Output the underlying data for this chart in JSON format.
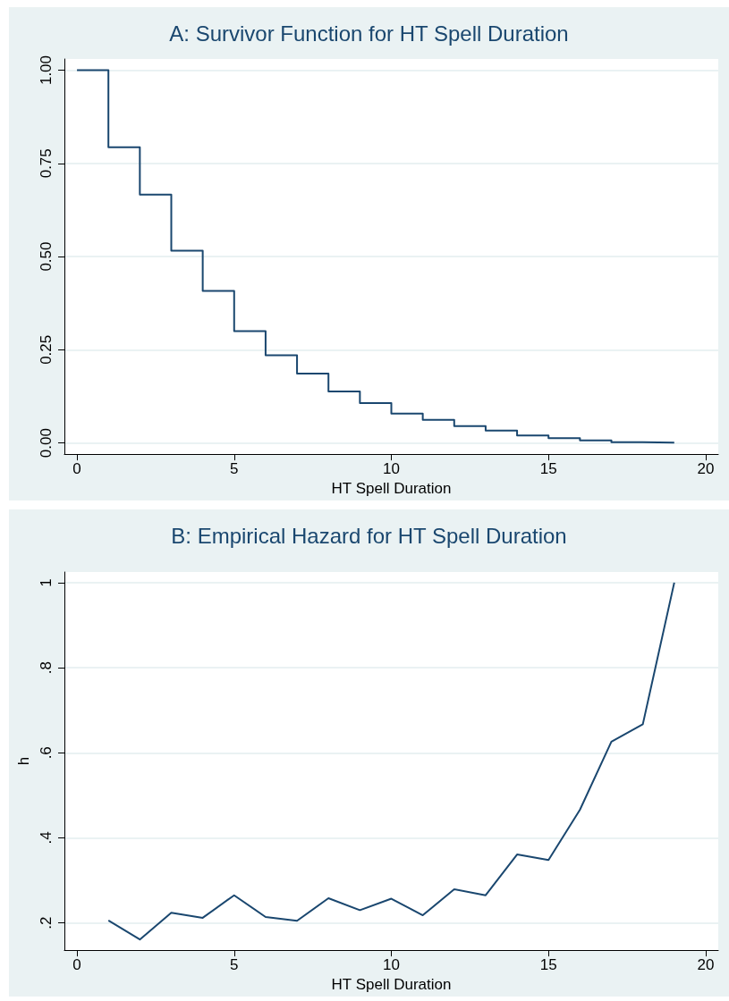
{
  "chart_data": [
    {
      "type": "step",
      "title": "A: Survivor Function for HT Spell Duration",
      "xlabel": "HT Spell Duration",
      "x": [
        0,
        1,
        2,
        3,
        4,
        5,
        6,
        7,
        8,
        9,
        10,
        11,
        12,
        13,
        14,
        15,
        16,
        17,
        18,
        19
      ],
      "series": [
        {
          "color": "#1a476f",
          "values": [
            1.0,
            0.793,
            0.666,
            0.516,
            0.408,
            0.3,
            0.235,
            0.186,
            0.138,
            0.107,
            0.079,
            0.062,
            0.045,
            0.033,
            0.02,
            0.013,
            0.007,
            0.002,
            0.001,
            0.0
          ]
        }
      ],
      "xlim": [
        -0.4,
        20.4
      ],
      "xticks": [
        0,
        5,
        10,
        15,
        20
      ],
      "ylim": [
        -0.03,
        1.03
      ],
      "yticks": [
        {
          "value": 0,
          "label": "0.00"
        },
        {
          "value": 0.25,
          "label": "0.25"
        },
        {
          "value": 0.5,
          "label": "0.50"
        },
        {
          "value": 0.75,
          "label": "0.75"
        },
        {
          "value": 1,
          "label": "1.00"
        }
      ],
      "grid": "y",
      "marker": "none",
      "line_style": "solid"
    },
    {
      "type": "line",
      "title": "B: Empirical Hazard for HT Spell Duration",
      "xlabel": "HT Spell Duration",
      "ylabel": "h",
      "x": [
        1,
        2,
        3,
        4,
        5,
        6,
        7,
        8,
        9,
        10,
        11,
        12,
        13,
        14,
        15,
        16,
        17,
        18,
        19
      ],
      "series": [
        {
          "color": "#1a476f",
          "values": [
            0.206,
            0.161,
            0.224,
            0.212,
            0.265,
            0.214,
            0.205,
            0.258,
            0.23,
            0.257,
            0.218,
            0.279,
            0.265,
            0.361,
            0.348,
            0.466,
            0.626,
            0.667,
            1.0
          ]
        }
      ],
      "xlim": [
        -0.4,
        20.4
      ],
      "xticks": [
        0,
        5,
        10,
        15,
        20
      ],
      "ylim": [
        0.136,
        1.025
      ],
      "yticks": [
        {
          "value": 0.2,
          "label": ".2"
        },
        {
          "value": 0.4,
          "label": ".4"
        },
        {
          "value": 0.6,
          "label": ".6"
        },
        {
          "value": 0.8,
          "label": ".8"
        },
        {
          "value": 1,
          "label": "1"
        }
      ],
      "grid": "y",
      "marker": "none",
      "line_style": "solid"
    }
  ]
}
